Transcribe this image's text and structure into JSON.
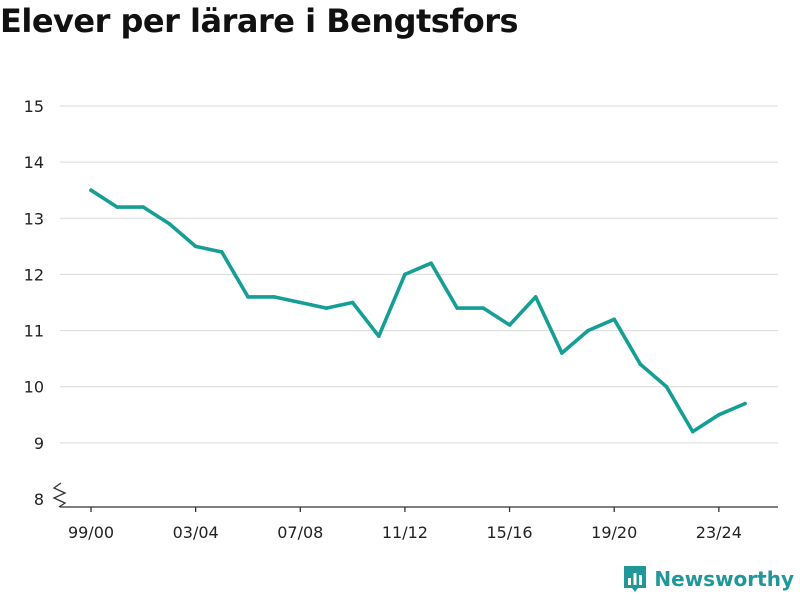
{
  "title": "Elever per lärare i Bengtsfors",
  "brand": {
    "name": "Newsworthy",
    "icon": "bar-chart-logo-icon",
    "color": "#21979a"
  },
  "chart_data": {
    "type": "line",
    "x": [
      "99/00",
      "00/01",
      "01/02",
      "02/03",
      "03/04",
      "04/05",
      "05/06",
      "06/07",
      "07/08",
      "08/09",
      "09/10",
      "10/11",
      "11/12",
      "12/13",
      "13/14",
      "14/15",
      "15/16",
      "16/17",
      "17/18",
      "18/19",
      "19/20",
      "20/21",
      "21/22",
      "22/23",
      "23/24",
      "24/25"
    ],
    "values": [
      13.5,
      13.2,
      13.2,
      12.9,
      12.5,
      12.4,
      11.6,
      11.6,
      11.5,
      11.4,
      11.5,
      10.9,
      12.0,
      12.2,
      11.4,
      11.4,
      11.1,
      11.6,
      10.6,
      11.0,
      11.2,
      10.4,
      10.0,
      9.2,
      9.5,
      9.7
    ],
    "x_tick_labels": [
      "99/00",
      "03/04",
      "07/08",
      "11/12",
      "15/16",
      "19/20",
      "23/24"
    ],
    "y_ticks": [
      8,
      9,
      10,
      11,
      12,
      13,
      14,
      15
    ],
    "ylim": [
      8,
      15
    ],
    "y_axis_break": true,
    "grid": true,
    "line_color": "#159e96"
  }
}
